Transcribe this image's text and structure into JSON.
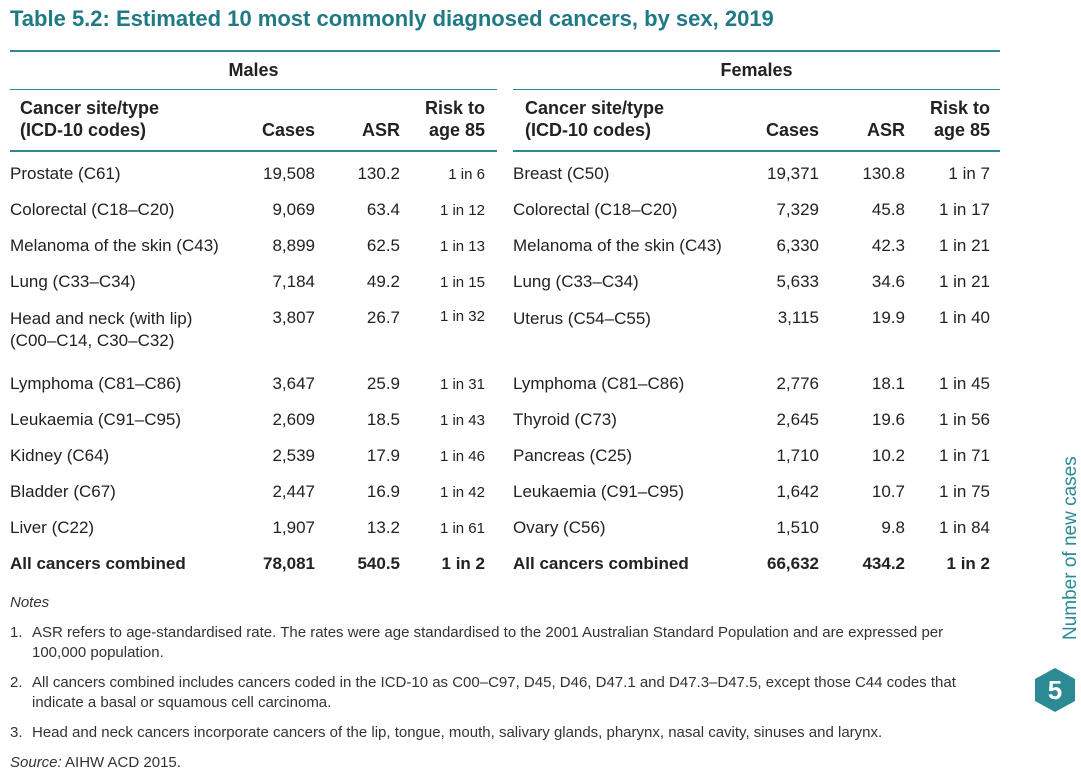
{
  "title": "Table 5.2: Estimated 10 most commonly diagnosed cancers, by sex, 2019",
  "headers": {
    "males": "Males",
    "females": "Females",
    "site_line1": "Cancer site/type",
    "site_line2": "(ICD-10 codes)",
    "cases": "Cases",
    "asr": "ASR",
    "risk_line1": "Risk to",
    "risk_line2": "age 85"
  },
  "rows": [
    {
      "m_site": "Prostate (C61)",
      "m_cases": "19,508",
      "m_asr": "130.2",
      "m_risk": "1 in 6",
      "f_site": "Breast (C50)",
      "f_cases": "19,371",
      "f_asr": "130.8",
      "f_risk": "1 in 7"
    },
    {
      "m_site": "Colorectal (C18–C20)",
      "m_cases": "9,069",
      "m_asr": "63.4",
      "m_risk": "1 in 12",
      "f_site": "Colorectal (C18–C20)",
      "f_cases": "7,329",
      "f_asr": "45.8",
      "f_risk": "1 in 17"
    },
    {
      "m_site": "Melanoma of the skin (C43)",
      "m_cases": "8,899",
      "m_asr": "62.5",
      "m_risk": "1 in 13",
      "f_site": "Melanoma of the skin (C43)",
      "f_cases": "6,330",
      "f_asr": "42.3",
      "f_risk": "1 in 21"
    },
    {
      "m_site": "Lung (C33–C34)",
      "m_cases": "7,184",
      "m_asr": "49.2",
      "m_risk": "1 in 15",
      "f_site": "Lung (C33–C34)",
      "f_cases": "5,633",
      "f_asr": "34.6",
      "f_risk": "1 in 21"
    },
    {
      "m_site": "Head and neck (with lip)",
      "m_site2": "(C00–C14, C30–C32)",
      "m_cases": "3,807",
      "m_asr": "26.7",
      "m_risk": "1 in 32",
      "f_site": "Uterus (C54–C55)",
      "f_cases": "3,115",
      "f_asr": "19.9",
      "f_risk": "1 in 40"
    },
    {
      "m_site": "Lymphoma (C81–C86)",
      "m_cases": "3,647",
      "m_asr": "25.9",
      "m_risk": "1 in 31",
      "f_site": "Lymphoma (C81–C86)",
      "f_cases": "2,776",
      "f_asr": "18.1",
      "f_risk": "1 in 45"
    },
    {
      "m_site": "Leukaemia (C91–C95)",
      "m_cases": "2,609",
      "m_asr": "18.5",
      "m_risk": "1 in 43",
      "f_site": "Thyroid (C73)",
      "f_cases": "2,645",
      "f_asr": "19.6",
      "f_risk": "1 in 56"
    },
    {
      "m_site": "Kidney (C64)",
      "m_cases": "2,539",
      "m_asr": "17.9",
      "m_risk": "1 in 46",
      "f_site": "Pancreas (C25)",
      "f_cases": "1,710",
      "f_asr": "10.2",
      "f_risk": "1 in 71"
    },
    {
      "m_site": "Bladder (C67)",
      "m_cases": "2,447",
      "m_asr": "16.9",
      "m_risk": "1 in 42",
      "f_site": "Leukaemia (C91–C95)",
      "f_cases": "1,642",
      "f_asr": "10.7",
      "f_risk": "1 in 75"
    },
    {
      "m_site": "Liver (C22)",
      "m_cases": "1,907",
      "m_asr": "13.2",
      "m_risk": "1 in 61",
      "f_site": "Ovary (C56)",
      "f_cases": "1,510",
      "f_asr": "9.8",
      "f_risk": "1 in 84"
    }
  ],
  "total": {
    "m_site": "All cancers combined",
    "m_cases": "78,081",
    "m_asr": "540.5",
    "m_risk": "1 in 2",
    "f_site": "All cancers combined",
    "f_cases": "66,632",
    "f_asr": "434.2",
    "f_risk": "1 in 2"
  },
  "notes": {
    "title": "Notes",
    "items": [
      {
        "num": "1.",
        "text": "ASR refers to age-standardised rate. The rates were age standardised to the 2001 Australian Standard Population and are expressed per 100,000 population."
      },
      {
        "num": "2.",
        "text": "All cancers combined includes cancers coded in the ICD-10 as C00–C97, D45, D46, D47.1 and D47.3–D47.5, except those C44 codes that indicate a basal or squamous cell carcinoma."
      },
      {
        "num": "3.",
        "text": "Head and neck cancers incorporate cancers of the lip, tongue, mouth, salivary glands, pharynx, nasal cavity, sinuses and larynx."
      }
    ],
    "source_label": "Source:",
    "source_text": " AIHW ACD 2015."
  },
  "side": {
    "label": "Number of new cases",
    "chapter": "5"
  },
  "colors": {
    "accent": "#2c8a94",
    "title": "#1f7a85"
  }
}
